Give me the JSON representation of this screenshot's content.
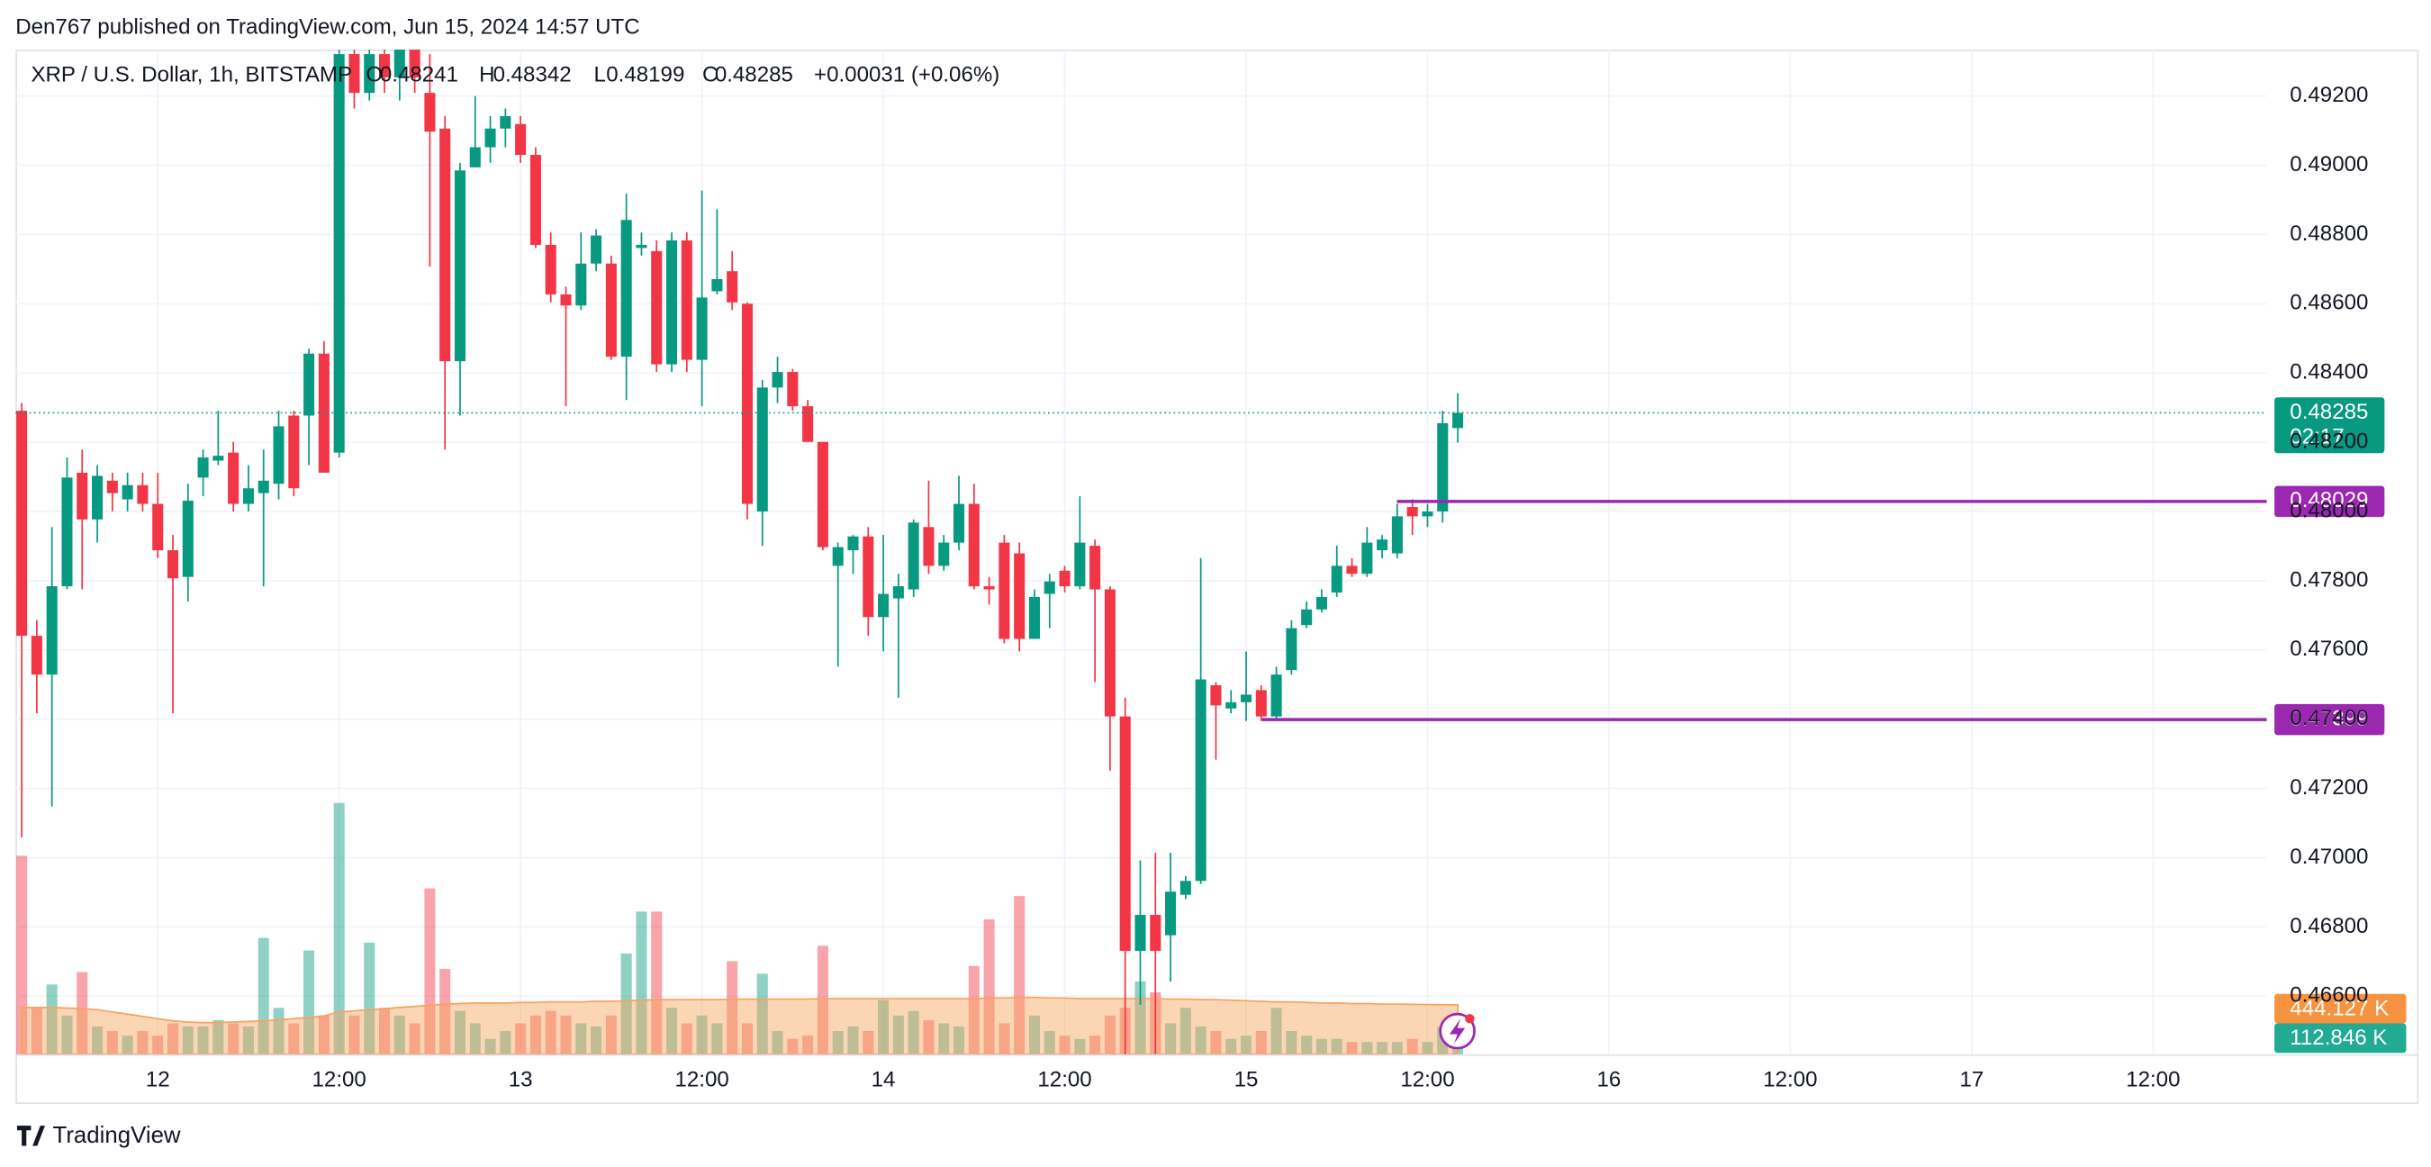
{
  "published": "Den767 published on TradingView.com, Jun 15, 2024 14:57 UTC",
  "footer": "TradingView",
  "chart_data": {
    "type": "candlestick",
    "title": "XRP / U.S. Dollar, 1h, BITSTAMP",
    "legend": {
      "open_label": "O",
      "high_label": "H",
      "low_label": "L",
      "close_label": "C",
      "open": 0.48241,
      "high": 0.48342,
      "low": 0.48199,
      "close": 0.48285,
      "change": "+0.00031 (+0.06%)"
    },
    "up_color": "#089981",
    "down_color": "#f23645",
    "categories": [
      null,
      null,
      null,
      null,
      null,
      null,
      null,
      null,
      null,
      "12",
      null,
      null,
      null,
      null,
      null,
      null,
      null,
      null,
      null,
      null,
      null,
      "12:00",
      null,
      null,
      null,
      null,
      null,
      null,
      null,
      null,
      null,
      null,
      null,
      "13",
      null,
      null,
      null,
      null,
      null,
      null,
      null,
      null,
      null,
      null,
      null,
      "12:00",
      null,
      null,
      null,
      null,
      null,
      null,
      null,
      null,
      null,
      null,
      null,
      "14",
      null,
      null,
      null,
      null,
      null,
      null,
      null,
      null,
      null,
      null,
      null,
      "12:00",
      null,
      null,
      null,
      null,
      null,
      null,
      null,
      null,
      null,
      null,
      null,
      "15",
      null,
      null,
      null,
      null,
      null,
      null,
      null,
      null,
      null,
      null,
      null,
      "12:00",
      null,
      null,
      null,
      null,
      null,
      null,
      null,
      null,
      null,
      null,
      null,
      "16",
      null,
      null,
      null,
      null,
      null,
      null,
      null,
      null,
      null,
      null,
      null,
      "12:00",
      null,
      null,
      null,
      null,
      null,
      null,
      null,
      null,
      null,
      null,
      null,
      "17",
      null,
      null,
      null,
      null,
      null,
      null,
      null,
      null,
      null,
      null,
      null,
      "12:00",
      null,
      null,
      null,
      null,
      null,
      null,
      null
    ],
    "open": [
      0.48291,
      0.47641,
      0.47529,
      0.47784,
      0.48112,
      0.47977,
      0.48089,
      0.48035,
      0.48076,
      0.48022,
      0.47888,
      0.47811,
      0.48098,
      0.48147,
      0.4817,
      0.48022,
      0.48053,
      0.4808,
      0.48277,
      0.48277,
      0.48456,
      0.4817,
      0.49321,
      0.49209,
      0.49321,
      0.49254,
      0.49343,
      0.49209,
      0.49106,
      0.48434,
      0.48994,
      0.49052,
      0.49106,
      0.49119,
      0.4903,
      0.4877,
      0.48627,
      0.48595,
      0.48716,
      0.48716,
      0.48447,
      0.48761,
      0.48752,
      0.48425,
      0.48783,
      0.48438,
      0.48636,
      0.48694,
      0.486,
      0.48,
      0.48358,
      0.48403,
      0.48304,
      0.48201,
      0.47843,
      0.47888,
      0.47928,
      0.47695,
      0.47749,
      0.47775,
      0.47955,
      0.47843,
      0.4791,
      0.48022,
      0.47784,
      0.4791,
      0.47879,
      0.47632,
      0.47762,
      0.47829,
      0.47784,
      0.47901,
      0.47775,
      0.47408,
      0.46731,
      0.46835,
      0.46776,
      0.46893,
      0.46933,
      0.47498,
      0.47431,
      0.47449,
      0.47484,
      0.47408,
      0.47542,
      0.47672,
      0.47717,
      0.47766,
      0.47843,
      0.4782,
      0.47888,
      0.47879,
      0.48013,
      0.47986,
      0.48,
      0.48241,
      null,
      null,
      null,
      null,
      null,
      null,
      null,
      null,
      null,
      null,
      null,
      null,
      null,
      null,
      null,
      null,
      null,
      null,
      null,
      null,
      null,
      null,
      null,
      null,
      null,
      null,
      null,
      null,
      null,
      null,
      null,
      null,
      null,
      null,
      null,
      null,
      null,
      null,
      null,
      null,
      null,
      null,
      null,
      null,
      null,
      null,
      null,
      null,
      null,
      null,
      null,
      null,
      null
    ],
    "high": [
      0.48313,
      0.47686,
      0.47955,
      0.48156,
      0.48179,
      0.48134,
      0.48112,
      0.48112,
      0.48112,
      0.48112,
      0.47932,
      0.4808,
      0.48179,
      0.48291,
      0.48201,
      0.48134,
      0.48179,
      0.48291,
      0.48291,
      0.4847,
      0.48492,
      0.49388,
      0.49343,
      0.49343,
      0.49388,
      0.49388,
      0.49388,
      0.49321,
      0.49142,
      0.49007,
      0.492,
      0.49142,
      0.49164,
      0.49142,
      0.49052,
      0.48806,
      0.48649,
      0.48806,
      0.48815,
      0.48739,
      0.48918,
      0.48806,
      0.48783,
      0.48806,
      0.48806,
      0.48927,
      0.48873,
      0.48752,
      0.48604,
      0.4838,
      0.48447,
      0.48412,
      0.48322,
      0.48201,
      0.4791,
      0.47932,
      0.47955,
      0.47932,
      0.4782,
      0.47977,
      0.48089,
      0.47932,
      0.48103,
      0.4808,
      0.47811,
      0.47932,
      0.4791,
      0.47775,
      0.4782,
      0.47843,
      0.48044,
      0.47919,
      0.47784,
      0.47462,
      0.46992,
      0.47014,
      0.47014,
      0.46947,
      0.47865,
      0.47507,
      0.47484,
      0.47596,
      0.47498,
      0.47552,
      0.47686,
      0.4774,
      0.47775,
      0.47901,
      0.47865,
      0.47955,
      0.47932,
      0.48022,
      0.48035,
      0.48022,
      0.48291,
      0.48342,
      null,
      null,
      null,
      null,
      null,
      null,
      null,
      null,
      null,
      null,
      null,
      null,
      null,
      null,
      null,
      null,
      null,
      null,
      null,
      null,
      null,
      null,
      null,
      null,
      null,
      null,
      null,
      null,
      null,
      null,
      null,
      null,
      null,
      null,
      null,
      null,
      null,
      null,
      null,
      null,
      null,
      null,
      null,
      null,
      null,
      null,
      null,
      null,
      null,
      null,
      null,
      null,
      null
    ],
    "low": [
      0.47059,
      0.47417,
      0.47148,
      0.47775,
      0.47775,
      0.4791,
      0.48,
      0.48,
      0.48,
      0.47865,
      0.47417,
      0.4774,
      0.48044,
      0.48134,
      0.48,
      0.48,
      0.47784,
      0.48035,
      0.48044,
      0.48134,
      0.48112,
      0.48156,
      0.49164,
      0.49187,
      0.49209,
      0.49187,
      0.49209,
      0.48707,
      0.48179,
      0.48277,
      0.48994,
      0.49007,
      0.49052,
      0.49007,
      0.48761,
      0.48604,
      0.48304,
      0.48582,
      0.48694,
      0.48438,
      0.48322,
      0.48739,
      0.48403,
      0.48403,
      0.48403,
      0.48304,
      0.48627,
      0.48582,
      0.47977,
      0.47901,
      0.48313,
      0.48291,
      0.48201,
      0.47888,
      0.47552,
      0.4782,
      0.47641,
      0.47596,
      0.47462,
      0.47753,
      0.4782,
      0.47829,
      0.47888,
      0.47775,
      0.47731,
      0.47619,
      0.47596,
      0.47632,
      0.47663,
      0.47766,
      0.47775,
      0.47507,
      0.47251,
      0.46432,
      0.46575,
      0.46432,
      0.46642,
      0.4688,
      0.46924,
      0.47283,
      0.47417,
      0.47395,
      0.47395,
      0.47395,
      0.47529,
      0.47663,
      0.47708,
      0.47753,
      0.47811,
      0.47811,
      0.47865,
      0.47865,
      0.47932,
      0.47955,
      0.47968,
      0.48199,
      null,
      null,
      null,
      null,
      null,
      null,
      null,
      null,
      null,
      null,
      null,
      null,
      null,
      null,
      null,
      null,
      null,
      null,
      null,
      null,
      null,
      null,
      null,
      null,
      null,
      null,
      null,
      null,
      null,
      null,
      null,
      null,
      null,
      null,
      null,
      null,
      null,
      null,
      null,
      null,
      null,
      null,
      null,
      null,
      null,
      null,
      null,
      null,
      null,
      null,
      null,
      null,
      null
    ],
    "close": [
      0.47641,
      0.47529,
      0.47784,
      0.48098,
      0.47977,
      0.48103,
      0.48053,
      0.48076,
      0.48022,
      0.47888,
      0.47807,
      0.48031,
      0.48156,
      0.48161,
      0.48022,
      0.48067,
      0.48089,
      0.48246,
      0.48067,
      0.48456,
      0.48112,
      0.49321,
      0.49209,
      0.49321,
      0.49254,
      0.49343,
      0.49254,
      0.49097,
      0.48434,
      0.48985,
      0.49052,
      0.49106,
      0.49142,
      0.4903,
      0.4877,
      0.48627,
      0.48595,
      0.48716,
      0.48797,
      0.48447,
      0.48842,
      0.4877,
      0.48425,
      0.48783,
      0.48438,
      0.48618,
      0.48671,
      0.48604,
      0.48022,
      0.48358,
      0.48403,
      0.48304,
      0.48201,
      0.47897,
      0.47897,
      0.47928,
      0.47695,
      0.47762,
      0.47784,
      0.47968,
      0.47843,
      0.4791,
      0.48022,
      0.47784,
      0.47775,
      0.47632,
      0.47632,
      0.47753,
      0.47798,
      0.47784,
      0.4791,
      0.47775,
      0.47408,
      0.46731,
      0.46835,
      0.46731,
      0.46902,
      0.46933,
      0.47515,
      0.4744,
      0.47449,
      0.47471,
      0.47408,
      0.47529,
      0.47663,
      0.47717,
      0.47753,
      0.47843,
      0.4782,
      0.4791,
      0.47919,
      0.47986,
      0.47986,
      0.48,
      0.48255,
      0.48285,
      null,
      null,
      null,
      null,
      null,
      null,
      null,
      null,
      null,
      null,
      null,
      null,
      null,
      null,
      null,
      null,
      null,
      null,
      null,
      null,
      null,
      null,
      null,
      null,
      null,
      null,
      null,
      null,
      null,
      null,
      null,
      null,
      null,
      null,
      null,
      null,
      null,
      null,
      null,
      null,
      null,
      null,
      null,
      null,
      null,
      null,
      null,
      null,
      null,
      null,
      null,
      null,
      null
    ],
    "ylim": [
      0.46432,
      0.49334
    ],
    "yticks": [
      {
        "value": 0.466,
        "label": "0.46600"
      },
      {
        "value": 0.468,
        "label": "0.46800"
      },
      {
        "value": 0.47,
        "label": "0.47000"
      },
      {
        "value": 0.472,
        "label": "0.47200"
      },
      {
        "value": 0.474,
        "label": "0.47400"
      },
      {
        "value": 0.476,
        "label": "0.47600"
      },
      {
        "value": 0.478,
        "label": "0.47800"
      },
      {
        "value": 0.48,
        "label": "0.48000"
      },
      {
        "value": 0.482,
        "label": "0.48200"
      },
      {
        "value": 0.484,
        "label": "0.48400"
      },
      {
        "value": 0.486,
        "label": "0.48600"
      },
      {
        "value": 0.488,
        "label": "0.48800"
      },
      {
        "value": 0.49,
        "label": "0.49000"
      },
      {
        "value": 0.492,
        "label": "0.49200"
      }
    ],
    "grid": true,
    "countdown": "02:17",
    "hlines": [
      {
        "value": 0.48029,
        "color": "#9c27b0"
      },
      {
        "value": 0.47399,
        "color": "#9c27b0"
      }
    ],
    "volume": {
      "ylim": [
        0,
        9000
      ],
      "values": [
        1779,
        417,
        626,
        348,
        737,
        250,
        209,
        167,
        209,
        167,
        278,
        250,
        250,
        306,
        278,
        250,
        1043,
        417,
        278,
        931,
        348,
        2252,
        348,
        1001,
        417,
        348,
        278,
        1487,
        765,
        389,
        278,
        139,
        209,
        278,
        348,
        389,
        348,
        278,
        250,
        348,
        904,
        1279,
        1279,
        417,
        278,
        348,
        278,
        834,
        278,
        723,
        209,
        139,
        167,
        973,
        209,
        250,
        209,
        487,
        348,
        389,
        306,
        278,
        250,
        792,
        1209,
        278,
        1418,
        348,
        209,
        167,
        139,
        167,
        348,
        417,
        653,
        556,
        278,
        417,
        250,
        209,
        139,
        167,
        209,
        417,
        209,
        167,
        139,
        139,
        111,
        111,
        111,
        111,
        139,
        111,
        250,
        112.846,
        null,
        null,
        null,
        null,
        null,
        null,
        null,
        null,
        null,
        null,
        null,
        null,
        null,
        null,
        null,
        null,
        null,
        null,
        null,
        null,
        null,
        null,
        null,
        null,
        null,
        null,
        null,
        null,
        null,
        null,
        null,
        null,
        null,
        null,
        null,
        null,
        null,
        null,
        null,
        null,
        null,
        null,
        null,
        null,
        null,
        null,
        null,
        null,
        null,
        null,
        null,
        null,
        null
      ],
      "last_label": "112.846 K",
      "ma": {
        "color": "#f7a35c",
        "values": [
          420,
          420,
          420,
          415,
          410,
          400,
          380,
          360,
          340,
          320,
          300,
          290,
          285,
          285,
          290,
          295,
          300,
          310,
          320,
          330,
          345,
          380,
          390,
          400,
          410,
          420,
          430,
          440,
          450,
          455,
          460,
          460,
          460,
          465,
          465,
          470,
          470,
          470,
          475,
          475,
          480,
          485,
          490,
          490,
          490,
          490,
          490,
          495,
          495,
          495,
          495,
          495,
          495,
          500,
          500,
          500,
          500,
          500,
          500,
          500,
          500,
          500,
          500,
          500,
          505,
          505,
          510,
          510,
          505,
          505,
          500,
          500,
          500,
          500,
          500,
          500,
          495,
          495,
          490,
          490,
          485,
          480,
          475,
          470,
          470,
          465,
          460,
          460,
          455,
          455,
          450,
          450,
          448,
          446,
          445,
          444.127,
          null,
          null,
          null,
          null,
          null,
          null,
          null,
          null,
          null,
          null,
          null,
          null,
          null,
          null,
          null,
          null,
          null,
          null,
          null,
          null,
          null,
          null,
          null,
          null,
          null,
          null,
          null,
          null,
          null,
          null,
          null,
          null,
          null,
          null,
          null,
          null,
          null,
          null,
          null,
          null,
          null,
          null,
          null,
          null,
          null,
          null,
          null,
          null,
          null,
          null,
          null,
          null,
          null
        ],
        "last_label": "444.127 K"
      }
    }
  }
}
